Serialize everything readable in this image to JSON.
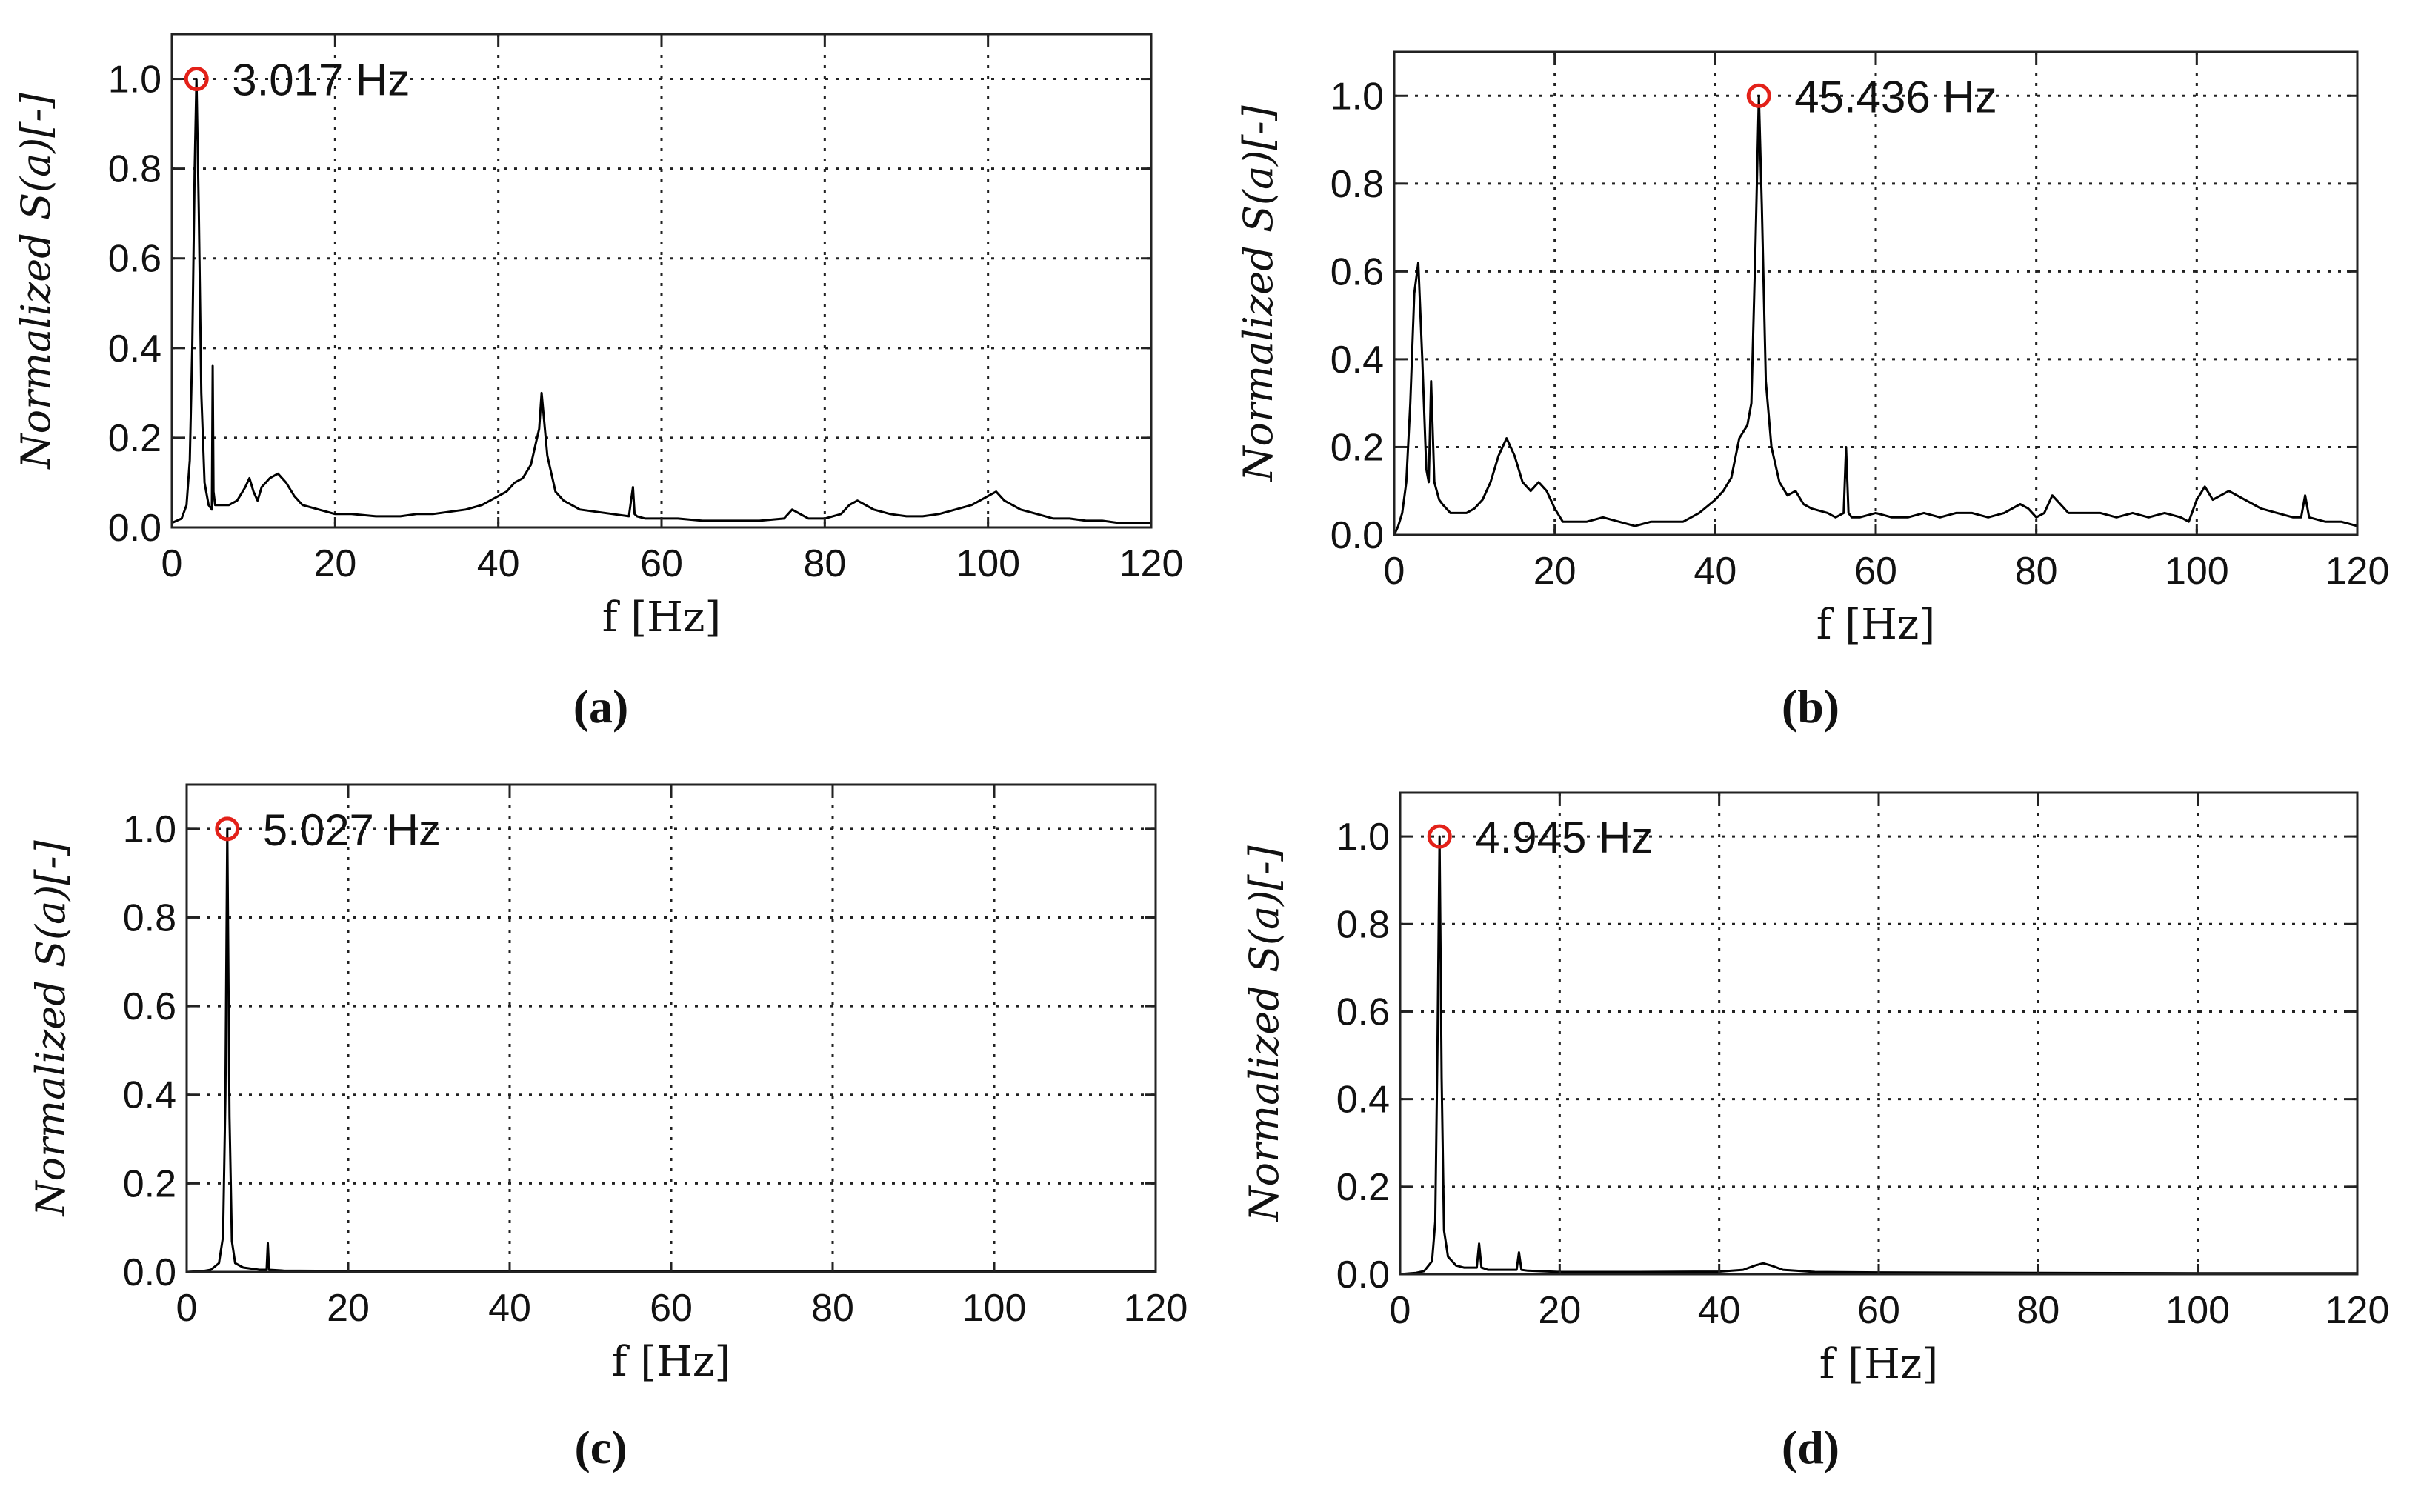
{
  "chart_data": [
    {
      "panel": "a",
      "caption": "(a)",
      "type": "line",
      "title": "",
      "xlabel": "f [Hz]",
      "ylabel": "Normalized S(a)[-]",
      "xlim": [
        0,
        120
      ],
      "ylim": [
        0,
        1.1
      ],
      "xticks": [
        "0",
        "20",
        "40",
        "60",
        "80",
        "100",
        "120"
      ],
      "yticks": [
        "0.0",
        "0.2",
        "0.4",
        "0.6",
        "0.8",
        "1.0"
      ],
      "grid": true,
      "peak": {
        "x": 3.017,
        "y": 1.0,
        "label": "3.017 Hz"
      },
      "x": [
        0,
        0.6,
        1.2,
        1.8,
        2.2,
        2.5,
        2.8,
        3.017,
        3.3,
        3.6,
        4.0,
        4.5,
        4.9,
        5.0,
        5.1,
        5.3,
        6,
        7,
        8,
        9,
        9.5,
        10,
        10.5,
        11,
        11.5,
        12,
        13,
        14,
        15,
        16,
        18,
        20,
        22,
        25,
        28,
        30,
        32,
        34,
        36,
        38,
        40,
        41,
        42,
        43,
        44,
        44.5,
        45,
        45.3,
        45.6,
        46,
        46.5,
        47,
        48,
        50,
        52,
        54,
        56,
        56.5,
        56.7,
        57,
        58,
        60,
        62,
        65,
        68,
        70,
        72,
        75,
        76,
        78,
        80,
        82,
        83,
        84,
        86,
        88,
        90,
        92,
        94,
        96,
        98,
        99,
        100,
        101,
        102,
        104,
        106,
        108,
        110,
        112,
        114,
        116,
        118,
        120
      ],
      "y": [
        0.01,
        0.015,
        0.02,
        0.05,
        0.15,
        0.4,
        0.8,
        1.0,
        0.7,
        0.3,
        0.1,
        0.05,
        0.04,
        0.36,
        0.08,
        0.05,
        0.05,
        0.05,
        0.06,
        0.09,
        0.11,
        0.08,
        0.06,
        0.09,
        0.1,
        0.11,
        0.12,
        0.1,
        0.07,
        0.05,
        0.04,
        0.03,
        0.03,
        0.025,
        0.025,
        0.03,
        0.03,
        0.035,
        0.04,
        0.05,
        0.07,
        0.08,
        0.1,
        0.11,
        0.14,
        0.18,
        0.22,
        0.3,
        0.24,
        0.16,
        0.12,
        0.08,
        0.06,
        0.04,
        0.035,
        0.03,
        0.025,
        0.09,
        0.03,
        0.025,
        0.02,
        0.02,
        0.02,
        0.015,
        0.015,
        0.015,
        0.015,
        0.02,
        0.04,
        0.02,
        0.02,
        0.03,
        0.05,
        0.06,
        0.04,
        0.03,
        0.025,
        0.025,
        0.03,
        0.04,
        0.05,
        0.06,
        0.07,
        0.08,
        0.06,
        0.04,
        0.03,
        0.02,
        0.02,
        0.015,
        0.015,
        0.01,
        0.01,
        0.01
      ]
    },
    {
      "panel": "b",
      "caption": "(b)",
      "type": "line",
      "title": "",
      "xlabel": "f [Hz]",
      "ylabel": "Normalized S(a)[-]",
      "xlim": [
        0,
        120
      ],
      "ylim": [
        0,
        1.1
      ],
      "xticks": [
        "0",
        "20",
        "40",
        "60",
        "80",
        "100",
        "120"
      ],
      "yticks": [
        "0.0",
        "0.2",
        "0.4",
        "0.6",
        "0.8",
        "1.0"
      ],
      "grid": true,
      "peak": {
        "x": 45.436,
        "y": 1.0,
        "label": "45.436 Hz"
      },
      "x": [
        0,
        0.5,
        1,
        1.5,
        2,
        2.5,
        3,
        3.5,
        4,
        4.3,
        4.6,
        5,
        5.3,
        5.6,
        6,
        7,
        8,
        9,
        10,
        11,
        12,
        13,
        14,
        15,
        16,
        17,
        18,
        19,
        20,
        21,
        22,
        24,
        26,
        28,
        30,
        32,
        34,
        36,
        38,
        40,
        41,
        42,
        43,
        44,
        44.5,
        45,
        45.436,
        45.8,
        46.3,
        47,
        48,
        49,
        50,
        51,
        52,
        54,
        55,
        56,
        56.3,
        56.6,
        57,
        58,
        60,
        62,
        64,
        66,
        68,
        70,
        72,
        74,
        76,
        78,
        79,
        80,
        81,
        82,
        84,
        86,
        88,
        90,
        92,
        94,
        96,
        98,
        99,
        100,
        101,
        102,
        104,
        106,
        108,
        110,
        112,
        113,
        113.5,
        114,
        116,
        118,
        120
      ],
      "y": [
        0.0,
        0.02,
        0.05,
        0.12,
        0.3,
        0.55,
        0.62,
        0.4,
        0.15,
        0.12,
        0.35,
        0.12,
        0.1,
        0.08,
        0.07,
        0.05,
        0.05,
        0.05,
        0.06,
        0.08,
        0.12,
        0.18,
        0.22,
        0.18,
        0.12,
        0.1,
        0.12,
        0.1,
        0.06,
        0.03,
        0.03,
        0.03,
        0.04,
        0.03,
        0.02,
        0.03,
        0.03,
        0.03,
        0.05,
        0.08,
        0.1,
        0.13,
        0.22,
        0.25,
        0.3,
        0.65,
        1.0,
        0.75,
        0.35,
        0.2,
        0.12,
        0.09,
        0.1,
        0.07,
        0.06,
        0.05,
        0.04,
        0.05,
        0.2,
        0.05,
        0.04,
        0.04,
        0.05,
        0.04,
        0.04,
        0.05,
        0.04,
        0.05,
        0.05,
        0.04,
        0.05,
        0.07,
        0.06,
        0.04,
        0.05,
        0.09,
        0.05,
        0.05,
        0.05,
        0.04,
        0.05,
        0.04,
        0.05,
        0.04,
        0.03,
        0.08,
        0.11,
        0.08,
        0.1,
        0.08,
        0.06,
        0.05,
        0.04,
        0.04,
        0.09,
        0.04,
        0.03,
        0.03,
        0.02
      ]
    },
    {
      "panel": "c",
      "caption": "(c)",
      "type": "line",
      "title": "",
      "xlabel": "f [Hz]",
      "ylabel": "Normalized S(a)[-]",
      "xlim": [
        0,
        120
      ],
      "ylim": [
        0,
        1.1
      ],
      "xticks": [
        "0",
        "20",
        "40",
        "60",
        "80",
        "100",
        "120"
      ],
      "yticks": [
        "0.0",
        "0.2",
        "0.4",
        "0.6",
        "0.8",
        "1.0"
      ],
      "grid": true,
      "peak": {
        "x": 5.027,
        "y": 1.0,
        "label": "5.027 Hz"
      },
      "x": [
        0,
        2,
        3,
        4,
        4.5,
        4.8,
        5.027,
        5.3,
        5.6,
        6,
        7,
        9,
        9.9,
        10.05,
        10.2,
        12,
        20,
        40,
        60,
        80,
        100,
        120
      ],
      "y": [
        0.0,
        0.002,
        0.005,
        0.02,
        0.08,
        0.4,
        1.0,
        0.35,
        0.07,
        0.02,
        0.01,
        0.005,
        0.005,
        0.065,
        0.005,
        0.003,
        0.002,
        0.002,
        0.001,
        0.001,
        0.001,
        0.001
      ]
    },
    {
      "panel": "d",
      "caption": "(d)",
      "type": "line",
      "title": "",
      "xlabel": "f [Hz]",
      "ylabel": "Normalized S(a)[-]",
      "xlim": [
        0,
        120
      ],
      "ylim": [
        0,
        1.1
      ],
      "xticks": [
        "0",
        "20",
        "40",
        "60",
        "80",
        "100",
        "120"
      ],
      "yticks": [
        "0.0",
        "0.2",
        "0.4",
        "0.6",
        "0.8",
        "1.0"
      ],
      "grid": true,
      "peak": {
        "x": 4.945,
        "y": 1.0,
        "label": "4.945 Hz"
      },
      "x": [
        0,
        2,
        3,
        4,
        4.4,
        4.7,
        4.945,
        5.2,
        5.5,
        6,
        7,
        8,
        9.6,
        9.9,
        10.2,
        11,
        14.6,
        14.9,
        15.2,
        16,
        20,
        30,
        40,
        43,
        44.5,
        45.5,
        46.5,
        48,
        52,
        60,
        80,
        100,
        120
      ],
      "y": [
        0.0,
        0.003,
        0.007,
        0.03,
        0.12,
        0.55,
        1.0,
        0.45,
        0.1,
        0.04,
        0.02,
        0.015,
        0.015,
        0.07,
        0.015,
        0.01,
        0.01,
        0.05,
        0.01,
        0.008,
        0.005,
        0.005,
        0.006,
        0.01,
        0.02,
        0.025,
        0.02,
        0.01,
        0.005,
        0.004,
        0.003,
        0.002,
        0.002
      ]
    }
  ]
}
